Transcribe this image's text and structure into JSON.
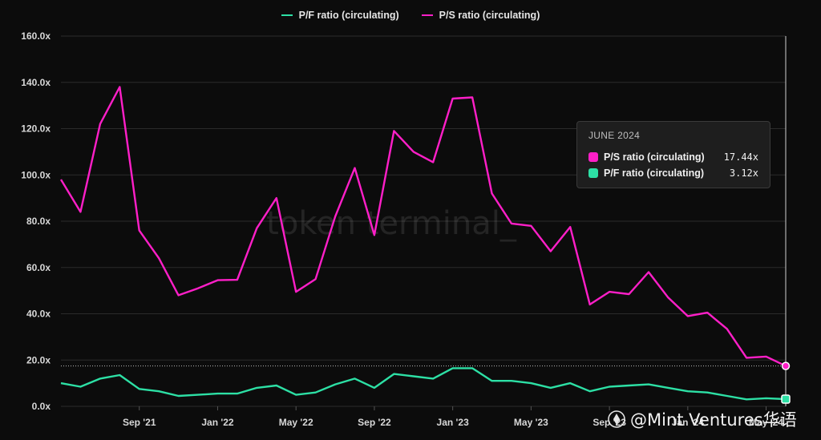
{
  "chart_data": {
    "type": "line",
    "title": "",
    "xlabel": "",
    "ylabel": "",
    "ylim": [
      0,
      160
    ],
    "y_ticks": [
      "0.0x",
      "20.0x",
      "40.0x",
      "60.0x",
      "80.0x",
      "100.0x",
      "120.0x",
      "140.0x",
      "160.0x"
    ],
    "x_ticks": [
      "Sep '21",
      "Jan '22",
      "May '22",
      "Sep '22",
      "Jan '23",
      "May '23",
      "Sep '23",
      "Jan '24",
      "May '24"
    ],
    "x": [
      "2021-05",
      "2021-06",
      "2021-07",
      "2021-08",
      "2021-09",
      "2021-10",
      "2021-11",
      "2021-12",
      "2022-01",
      "2022-02",
      "2022-03",
      "2022-04",
      "2022-05",
      "2022-06",
      "2022-07",
      "2022-08",
      "2022-09",
      "2022-10",
      "2022-11",
      "2022-12",
      "2023-01",
      "2023-02",
      "2023-03",
      "2023-04",
      "2023-05",
      "2023-06",
      "2023-07",
      "2023-08",
      "2023-09",
      "2023-10",
      "2023-11",
      "2023-12",
      "2024-01",
      "2024-02",
      "2024-03",
      "2024-04",
      "2024-05",
      "2024-06"
    ],
    "series": [
      {
        "name": "P/S ratio (circulating)",
        "color": "#ff1fc8",
        "values": [
          98,
          84,
          122,
          138,
          76,
          64,
          48,
          51,
          54.5,
          54.7,
          77,
          90,
          49.5,
          55,
          82,
          103,
          74,
          119,
          110,
          105.5,
          133,
          133.5,
          92,
          79,
          78,
          67,
          77.5,
          44,
          49.5,
          48.5,
          58,
          47,
          39,
          40.5,
          33.5,
          21,
          21.5,
          17.44
        ]
      },
      {
        "name": "P/F ratio (circulating)",
        "color": "#2de0a5",
        "values": [
          10,
          8.5,
          12,
          13.5,
          7.5,
          6.5,
          4.5,
          5,
          5.5,
          5.5,
          8,
          9,
          5,
          6,
          9.5,
          12,
          8,
          14,
          13,
          12,
          16.5,
          16.5,
          11,
          11,
          10,
          8,
          10,
          6.5,
          8.5,
          9,
          9.5,
          8,
          6.5,
          6,
          4.5,
          3,
          3.5,
          3.12
        ]
      }
    ],
    "grid": true,
    "legend_position": "top-center"
  },
  "legend": {
    "pf_label": "P/F ratio (circulating)",
    "ps_label": "P/S ratio (circulating)"
  },
  "tooltip": {
    "title": "JUNE 2024",
    "rows": [
      {
        "name": "P/S ratio (circulating)",
        "value": "17.44x",
        "color": "#ff1fc8"
      },
      {
        "name": "P/F ratio (circulating)",
        "value": "3.12x",
        "color": "#2de0a5"
      }
    ]
  },
  "watermark": {
    "center": "token terminal_",
    "corner": "@Mint Ventures华语"
  }
}
